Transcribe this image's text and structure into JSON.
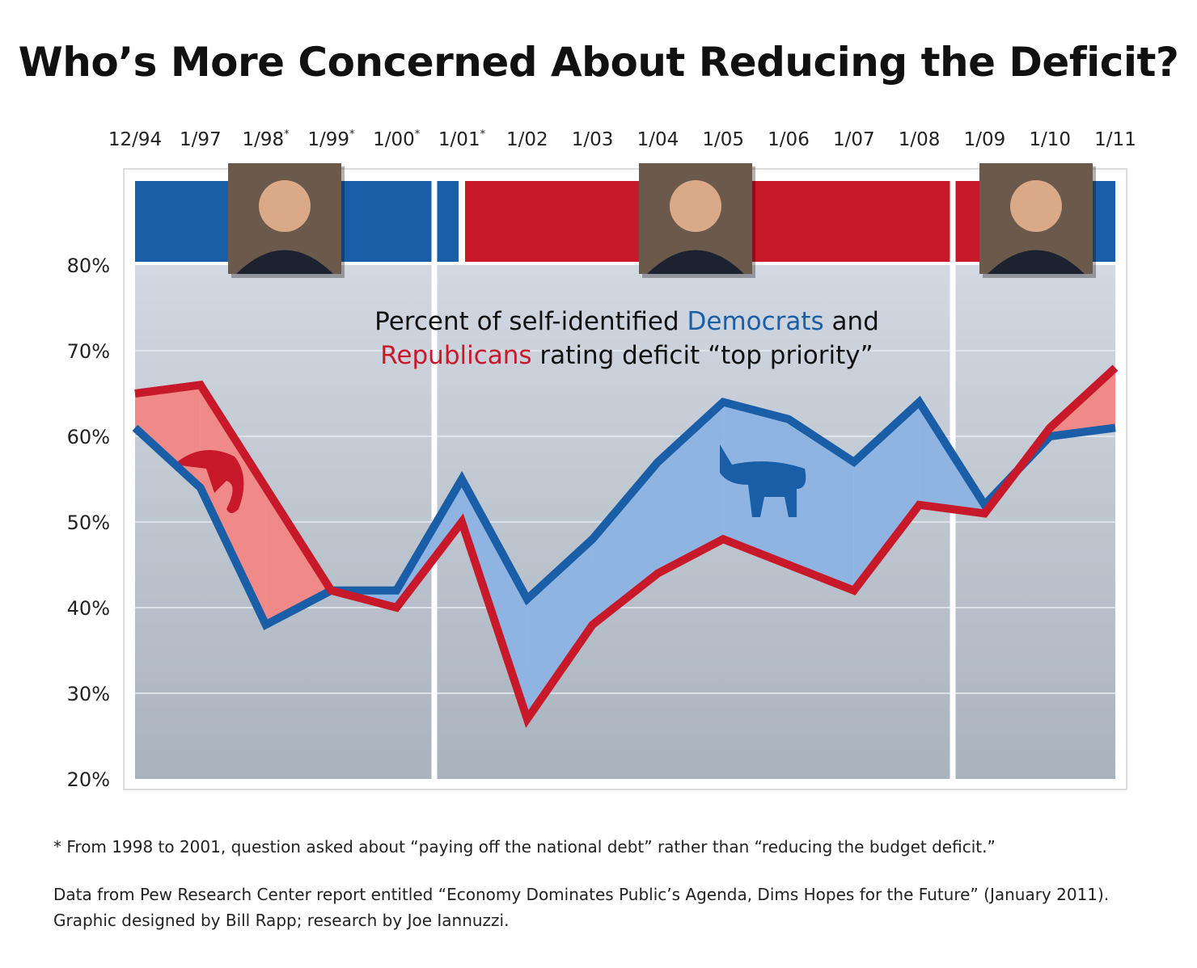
{
  "title": "Who’s More Concerned About Reducing the Deficit?",
  "chart_data": {
    "type": "line",
    "subtitle_parts": [
      "Percent of self-identified ",
      "Democrats",
      " and",
      "Republicans",
      " rating deficit “top priority”"
    ],
    "categories": [
      "12/94",
      "1/97",
      "1/98*",
      "1/99*",
      "1/00*",
      "1/01*",
      "1/02",
      "1/03",
      "1/04",
      "1/05",
      "1/06",
      "1/07",
      "1/08",
      "1/09",
      "1/10",
      "1/11"
    ],
    "series": [
      {
        "name": "Democrats",
        "color": "#1a5ea8",
        "values": [
          61,
          54,
          38,
          42,
          42,
          55,
          41,
          48,
          57,
          64,
          62,
          57,
          64,
          52,
          60,
          61
        ]
      },
      {
        "name": "Republicans",
        "color": "#c8192a",
        "values": [
          65,
          66,
          54,
          42,
          40,
          50,
          27,
          38,
          44,
          48,
          45,
          42,
          52,
          51,
          61,
          68
        ]
      }
    ],
    "ylim": [
      20,
      80
    ],
    "yticks": [
      "20%",
      "30%",
      "40%",
      "50%",
      "60%",
      "70%",
      "80%"
    ],
    "grid": true,
    "fill_colors": {
      "rep_higher": "#f08a88",
      "dem_higher": "#8fb4e2"
    },
    "presidency_bands": [
      {
        "party": "Democratic",
        "from": "12/94",
        "to": "1/01*",
        "color": "#1a5ea8",
        "portrait": "clinton-portrait"
      },
      {
        "party": "Republican",
        "from": "1/01*",
        "to": "1/09",
        "color": "#c8192a",
        "portrait": "bush-portrait"
      },
      {
        "party": "Democratic",
        "from": "1/09",
        "to": "1/11",
        "color": "#1a5ea8",
        "portrait": "obama-portrait"
      }
    ]
  },
  "footnote": "* From 1998 to 2001, question asked about “paying off the national debt” rather than “reducing the budget deficit.”",
  "source_line1": "Data from Pew Research Center report entitled “Economy Dominates Public’s Agenda, Dims Hopes for the Future” (January 2011).",
  "source_line2": "Graphic designed by Bill Rapp; research by Joe Iannuzzi."
}
